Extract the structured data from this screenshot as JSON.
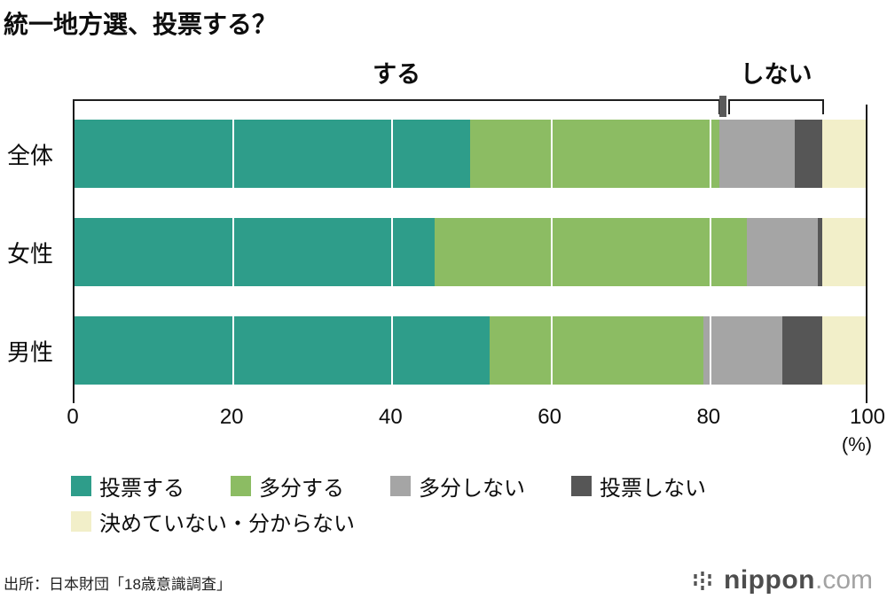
{
  "title": "統一地方選、投票する？",
  "chart_data": {
    "type": "bar",
    "orientation": "horizontal",
    "stacked": true,
    "title": "統一地方選、投票する？",
    "categories": [
      "全体",
      "女性",
      "男性"
    ],
    "series": [
      {
        "name": "投票する",
        "color": "#2E9D8A",
        "values": [
          50.0,
          45.5,
          52.5
        ]
      },
      {
        "name": "多分する",
        "color": "#8CBC63",
        "values": [
          31.5,
          39.5,
          27.0
        ]
      },
      {
        "name": "多分しない",
        "color": "#A5A5A5",
        "values": [
          9.5,
          9.0,
          10.0
        ]
      },
      {
        "name": "投票しない",
        "color": "#565656",
        "values": [
          3.5,
          0.5,
          5.0
        ]
      },
      {
        "name": "決めていない・分からない",
        "color": "#F2EFC9",
        "values": [
          5.5,
          5.5,
          5.5
        ]
      }
    ],
    "x_ticks": [
      0,
      20,
      40,
      60,
      80,
      100
    ],
    "x_unit": "(%)",
    "xlim": [
      0,
      100
    ],
    "grid": true,
    "legend_position": "bottom",
    "annotations": [
      {
        "label": "する",
        "from": 0,
        "to": 81.5
      },
      {
        "label": "しない",
        "from": 82.5,
        "to": 94.5
      }
    ]
  },
  "source": "出所：日本財団「18歳意識調査」",
  "logo": {
    "text": "nippon",
    "suffix": ".com"
  }
}
